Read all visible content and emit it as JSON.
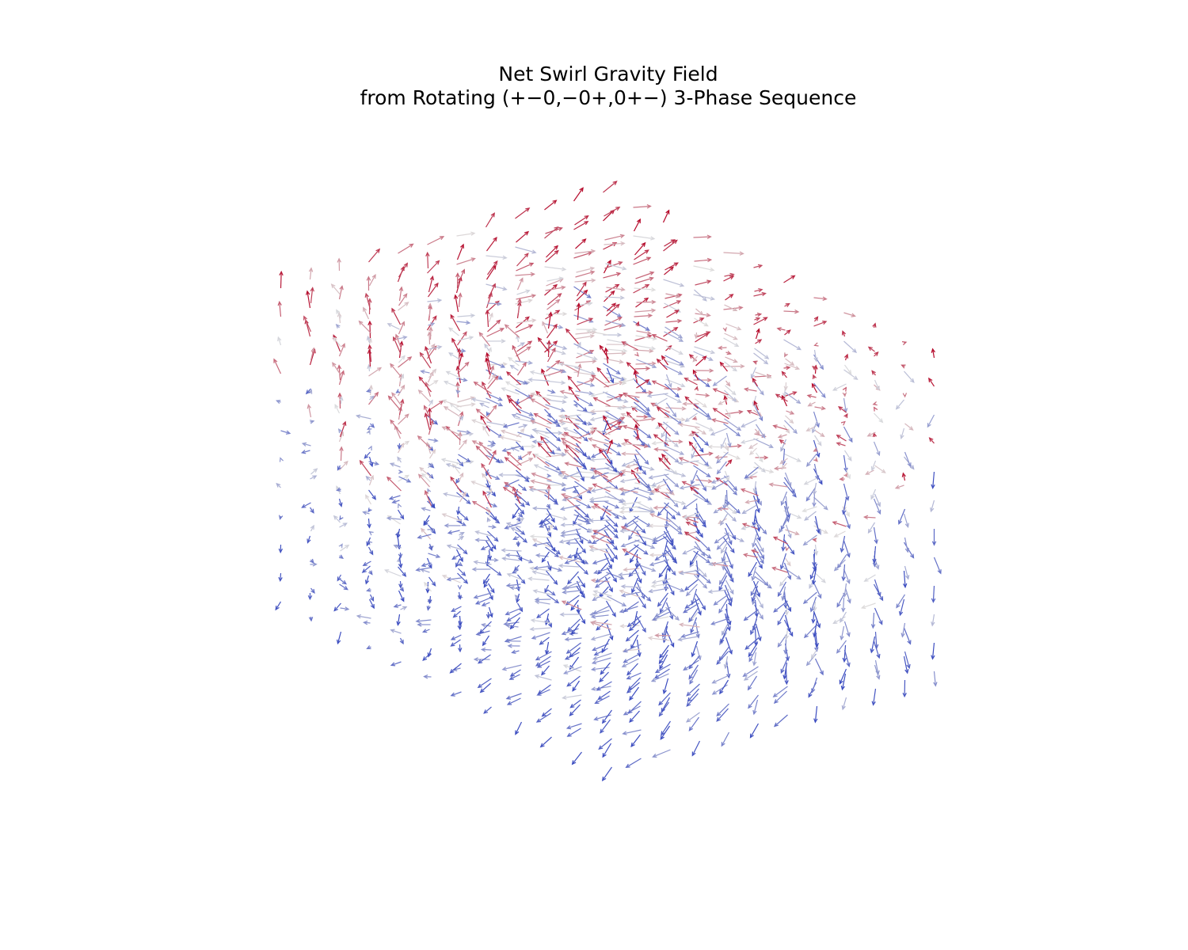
{
  "chart_data": {
    "type": "quiver3d",
    "title": "Net Swirl Gravity Field",
    "subtitle": "from Rotating (+−0,−0+,0+−) 3-Phase Sequence",
    "xlabel": "",
    "ylabel": "",
    "zlabel": "",
    "axes_visible": false,
    "grid": false,
    "grid_size": [
      12,
      12,
      12
    ],
    "xlim": [
      -1,
      1
    ],
    "ylim": [
      -1,
      1
    ],
    "zlim": [
      -1,
      1
    ],
    "colormap": {
      "name": "coolwarm",
      "low_color": "#3b4cc0",
      "mid_color": "#dddddd",
      "high_color": "#b40426",
      "encodes": "vertical component of field vector"
    },
    "field_description": "Swirling vector field sampled on a regular 3D grid; lower region predominantly downward (blue), upper region mixed with upward (red) arrows."
  }
}
